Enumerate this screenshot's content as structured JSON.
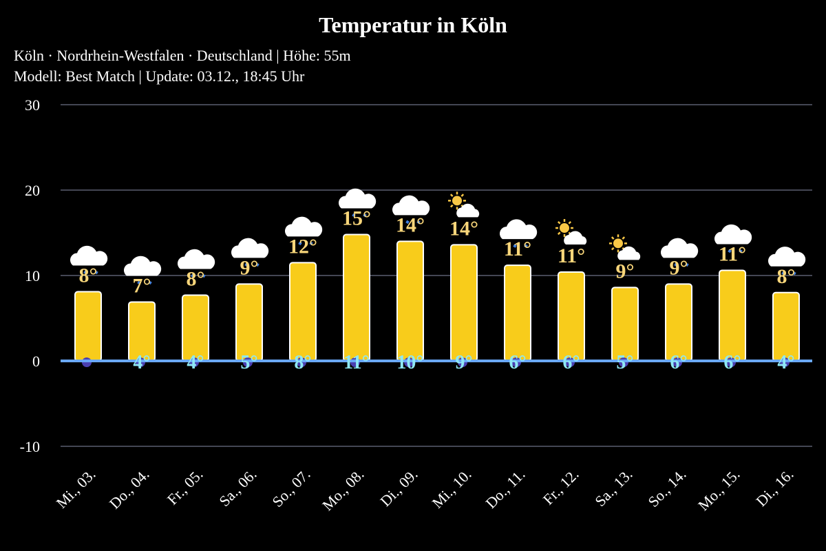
{
  "chart_data": {
    "type": "bar",
    "title": "Temperatur in Köln",
    "subtitle_lines": [
      "Köln · Nordrhein-Westfalen · Deutschland | Höhe: 55m",
      "Modell: Best Match | Update: 03.12., 18:45 Uhr"
    ],
    "categories": [
      "Mi., 03.",
      "Do., 04.",
      "Fr., 05.",
      "Sa., 06.",
      "So., 07.",
      "Mo., 08.",
      "Di., 09.",
      "Mi., 10.",
      "Do., 11.",
      "Fr., 12.",
      "Sa., 13.",
      "So., 14.",
      "Mo., 15.",
      "Di., 16."
    ],
    "series": [
      {
        "values": [
          8.1,
          6.9,
          7.7,
          9.0,
          11.5,
          14.8,
          14.0,
          13.6,
          11.2,
          10.4,
          8.6,
          9.0,
          10.6,
          8.0
        ]
      }
    ],
    "max_labels": [
      "8°",
      "7°",
      "8°",
      "9°",
      "12°",
      "15°",
      "14°",
      "14°",
      "11°",
      "11°",
      "9°",
      "9°",
      "11°",
      "8°"
    ],
    "min_labels": [
      "",
      "4°",
      "4°",
      "5°",
      "8°",
      "11°",
      "10°",
      "9°",
      "6°",
      "6°",
      "5°",
      "6°",
      "6°",
      "4°"
    ],
    "icons": [
      "cloud-rain",
      "cloud-rain",
      "cloud-rain",
      "cloud-rain",
      "cloud-rain",
      "cloud-rain",
      "cloud-rain",
      "sun-cloud",
      "cloud-rain",
      "sun-cloud",
      "sun-cloud",
      "cloud-rain",
      "cloud-rain",
      "cloud-rain"
    ],
    "y_ticks": [
      "30",
      "20",
      "10",
      "0",
      "-10"
    ],
    "ylim": [
      -10,
      30
    ],
    "grid": true,
    "colors": {
      "bar": "#f8cc1b",
      "bar_stroke": "#ffffff",
      "max_label": "#f9d67a",
      "min_label": "#8fe8f5",
      "zero_line": "#6aa8f7",
      "grid": "#5a5f70",
      "background": "#000000"
    }
  }
}
